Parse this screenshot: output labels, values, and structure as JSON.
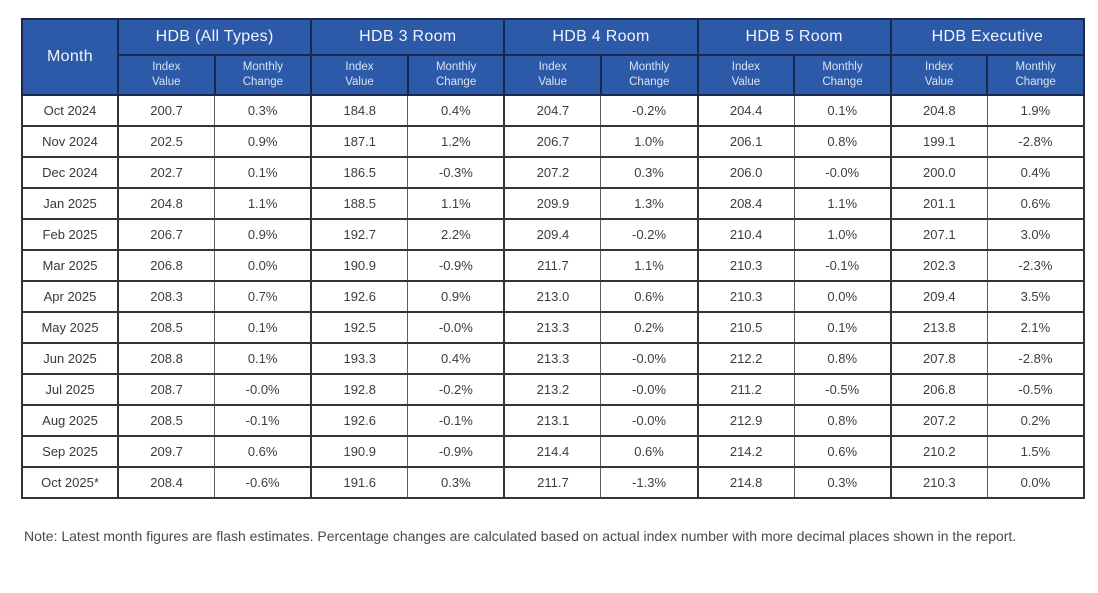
{
  "colors": {
    "header_background": "#2d5aa8",
    "header_border": "#18284f",
    "data_border": "#343434",
    "data_text": "#3d3d3d",
    "note_text": "#4a4a4a"
  },
  "table": {
    "month_header": "Month",
    "group_headers": [
      "HDB (All Types)",
      "HDB 3 Room",
      "HDB 4 Room",
      "HDB 5 Room",
      "HDB Executive"
    ],
    "subheader_index": "Index\nValue",
    "subheader_change": "Monthly\nChange"
  },
  "note": "Note: Latest month figures are flash estimates. Percentage changes are calculated based on actual index number with more decimal places shown in the report.",
  "chart_data": {
    "type": "table",
    "title": "",
    "column_groups": [
      "HDB (All Types)",
      "HDB 3 Room",
      "HDB 4 Room",
      "HDB 5 Room",
      "HDB Executive"
    ],
    "sub_columns_per_group": [
      "Index Value",
      "Monthly Change"
    ],
    "columns": [
      "Month",
      "HDB (All Types) Index Value",
      "HDB (All Types) Monthly Change",
      "HDB 3 Room Index Value",
      "HDB 3 Room Monthly Change",
      "HDB 4 Room Index Value",
      "HDB 4 Room Monthly Change",
      "HDB 5 Room Index Value",
      "HDB 5 Room Monthly Change",
      "HDB Executive Index Value",
      "HDB Executive Monthly Change"
    ],
    "rows": [
      [
        "Oct 2024",
        "200.7",
        "0.3%",
        "184.8",
        "0.4%",
        "204.7",
        "-0.2%",
        "204.4",
        "0.1%",
        "204.8",
        "1.9%"
      ],
      [
        "Nov 2024",
        "202.5",
        "0.9%",
        "187.1",
        "1.2%",
        "206.7",
        "1.0%",
        "206.1",
        "0.8%",
        "199.1",
        "-2.8%"
      ],
      [
        "Dec 2024",
        "202.7",
        "0.1%",
        "186.5",
        "-0.3%",
        "207.2",
        "0.3%",
        "206.0",
        "-0.0%",
        "200.0",
        "0.4%"
      ],
      [
        "Jan 2025",
        "204.8",
        "1.1%",
        "188.5",
        "1.1%",
        "209.9",
        "1.3%",
        "208.4",
        "1.1%",
        "201.1",
        "0.6%"
      ],
      [
        "Feb 2025",
        "206.7",
        "0.9%",
        "192.7",
        "2.2%",
        "209.4",
        "-0.2%",
        "210.4",
        "1.0%",
        "207.1",
        "3.0%"
      ],
      [
        "Mar 2025",
        "206.8",
        "0.0%",
        "190.9",
        "-0.9%",
        "211.7",
        "1.1%",
        "210.3",
        "-0.1%",
        "202.3",
        "-2.3%"
      ],
      [
        "Apr 2025",
        "208.3",
        "0.7%",
        "192.6",
        "0.9%",
        "213.0",
        "0.6%",
        "210.3",
        "0.0%",
        "209.4",
        "3.5%"
      ],
      [
        "May 2025",
        "208.5",
        "0.1%",
        "192.5",
        "-0.0%",
        "213.3",
        "0.2%",
        "210.5",
        "0.1%",
        "213.8",
        "2.1%"
      ],
      [
        "Jun 2025",
        "208.8",
        "0.1%",
        "193.3",
        "0.4%",
        "213.3",
        "-0.0%",
        "212.2",
        "0.8%",
        "207.8",
        "-2.8%"
      ],
      [
        "Jul 2025",
        "208.7",
        "-0.0%",
        "192.8",
        "-0.2%",
        "213.2",
        "-0.0%",
        "211.2",
        "-0.5%",
        "206.8",
        "-0.5%"
      ],
      [
        "Aug 2025",
        "208.5",
        "-0.1%",
        "192.6",
        "-0.1%",
        "213.1",
        "-0.0%",
        "212.9",
        "0.8%",
        "207.2",
        "0.2%"
      ],
      [
        "Sep 2025",
        "209.7",
        "0.6%",
        "190.9",
        "-0.9%",
        "214.4",
        "0.6%",
        "214.2",
        "0.6%",
        "210.2",
        "1.5%"
      ],
      [
        "Oct 2025*",
        "208.4",
        "-0.6%",
        "191.6",
        "0.3%",
        "211.7",
        "-1.3%",
        "214.8",
        "0.3%",
        "210.3",
        "0.0%"
      ]
    ],
    "note": "Note: Latest month figures are flash estimates. Percentage changes are calculated based on actual index number with more decimal places shown in the report.",
    "layout": {
      "grid": true,
      "header_rows": 2
    }
  }
}
